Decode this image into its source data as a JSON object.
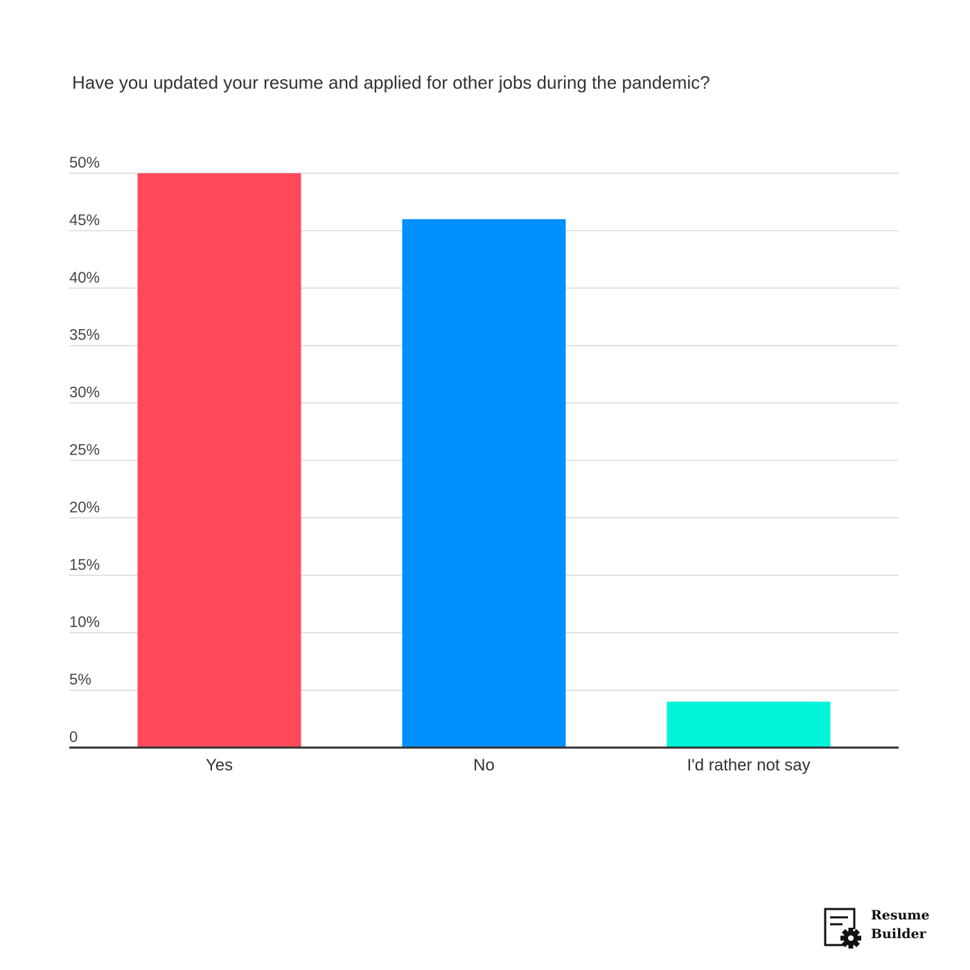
{
  "chart_data": {
    "type": "bar",
    "title": "Have you updated your resume and applied for other jobs during the pandemic?",
    "categories": [
      "Yes",
      "No",
      "I'd rather not say"
    ],
    "values": [
      50,
      46,
      4
    ],
    "colors": [
      "#ff4a5a",
      "#0390ff",
      "#00f5d9"
    ],
    "ylim": [
      0,
      50
    ],
    "yticks": [
      0,
      5,
      10,
      15,
      20,
      25,
      30,
      35,
      40,
      45,
      50
    ],
    "ytick_labels": [
      "0",
      "5%",
      "10%",
      "15%",
      "20%",
      "25%",
      "30%",
      "35%",
      "40%",
      "45%",
      "50%"
    ],
    "grid": true,
    "legend": "none"
  },
  "brand": {
    "line1": "Resume",
    "line2": "Builder",
    "icon": "resume-gear-icon"
  }
}
